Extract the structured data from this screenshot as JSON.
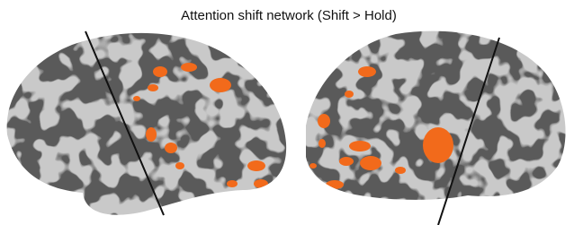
{
  "title": "Attention shift network (Shift > Hold)"
}
